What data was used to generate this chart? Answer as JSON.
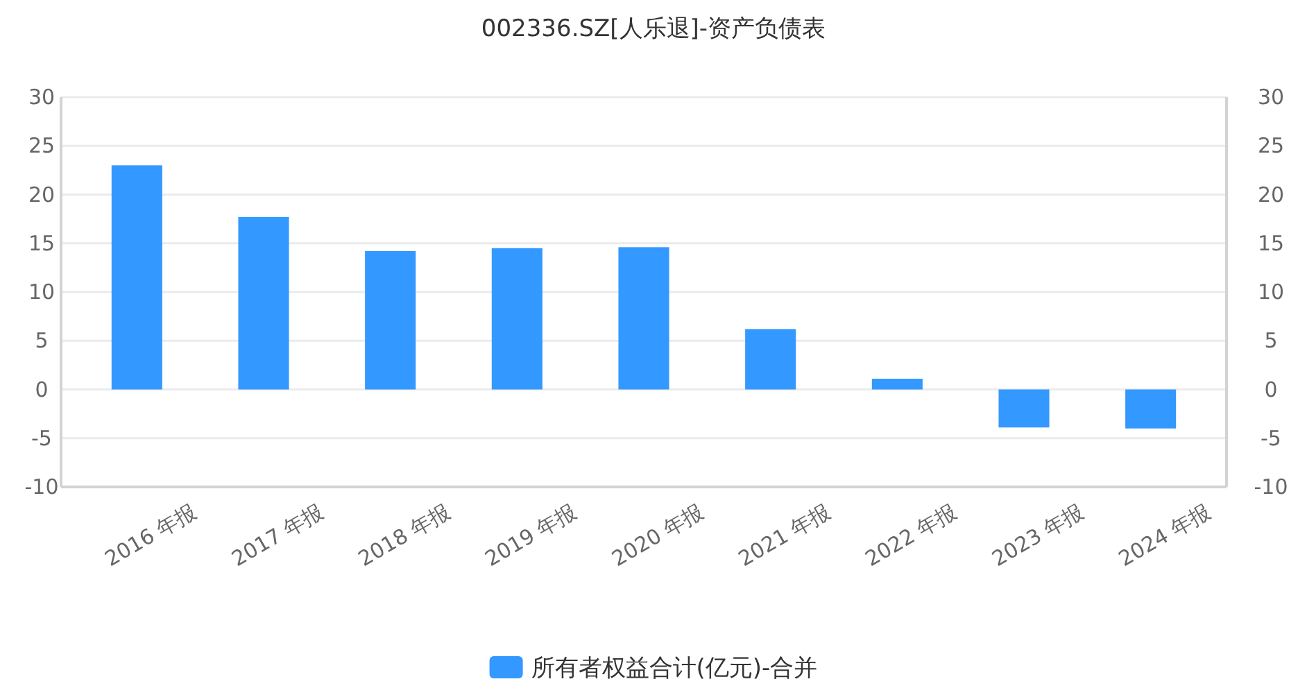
{
  "chart_data": {
    "type": "bar",
    "title": "002336.SZ[人乐退]-资产负债表",
    "categories": [
      "2016 年报",
      "2017 年报",
      "2018 年报",
      "2019 年报",
      "2020 年报",
      "2021 年报",
      "2022 年报",
      "2023 年报",
      "2024 年报"
    ],
    "series": [
      {
        "name": "所有者权益合计(亿元)-合并",
        "color": "#3398ff",
        "values": [
          23.0,
          17.7,
          14.2,
          14.5,
          14.6,
          6.2,
          1.1,
          -3.9,
          -4.0
        ]
      }
    ],
    "ylim": [
      -10,
      30
    ],
    "yticks": [
      -10,
      -5,
      0,
      5,
      10,
      15,
      20,
      25,
      30
    ],
    "y2lim": [
      -10,
      30
    ],
    "y2ticks": [
      -10,
      -5,
      0,
      5,
      10,
      15,
      20,
      25,
      30
    ],
    "grid": "y",
    "legend": "bottom"
  }
}
